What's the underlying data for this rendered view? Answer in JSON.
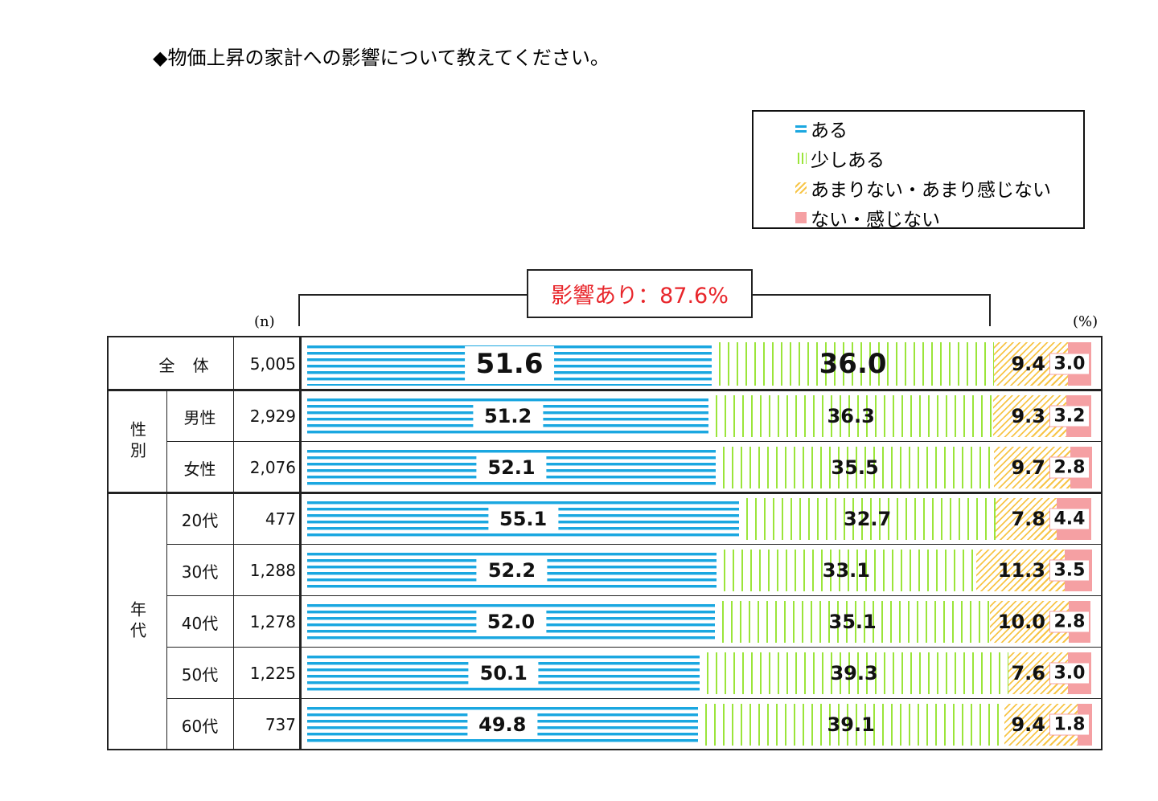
{
  "title": "◆物価上昇の家計への影響について教えてください。",
  "legend": [
    "ある",
    "少しある",
    "あまりない・あまり感じない",
    "ない・感じない"
  ],
  "impact_label": "影響あり：87.6%",
  "n_unit": "(n)",
  "pct_unit": "(%)",
  "groups": {
    "gender": "性別",
    "age": "年代"
  },
  "colors": {
    "aru": "#1aa7e0",
    "sukoshi": "#9be53a",
    "amari": "#f7c548",
    "nai": "#f5a0a3"
  },
  "chart_data": {
    "type": "bar",
    "stacked": true,
    "orientation": "horizontal",
    "title": "◆物価上昇の家計への影響について教えてください。",
    "series_names": [
      "ある",
      "少しある",
      "あまりない・あまり感じない",
      "ない・感じない"
    ],
    "xlim": [
      0,
      100
    ],
    "rows": [
      {
        "label": "全 体",
        "n": "5,005",
        "values": [
          51.6,
          36.0,
          9.4,
          3.0
        ]
      },
      {
        "label": "男性",
        "n": "2,929",
        "values": [
          51.2,
          36.3,
          9.3,
          3.2
        ]
      },
      {
        "label": "女性",
        "n": "2,076",
        "values": [
          52.1,
          35.5,
          9.7,
          2.8
        ]
      },
      {
        "label": "20代",
        "n": "477",
        "values": [
          55.1,
          32.7,
          7.8,
          4.4
        ]
      },
      {
        "label": "30代",
        "n": "1,288",
        "values": [
          52.2,
          33.1,
          11.3,
          3.5
        ]
      },
      {
        "label": "40代",
        "n": "1,278",
        "values": [
          52.0,
          35.1,
          10.0,
          2.8
        ]
      },
      {
        "label": "50代",
        "n": "1,225",
        "values": [
          50.1,
          39.3,
          7.6,
          3.0
        ]
      },
      {
        "label": "60代",
        "n": "737",
        "values": [
          49.8,
          39.1,
          9.4,
          1.8
        ]
      }
    ]
  }
}
